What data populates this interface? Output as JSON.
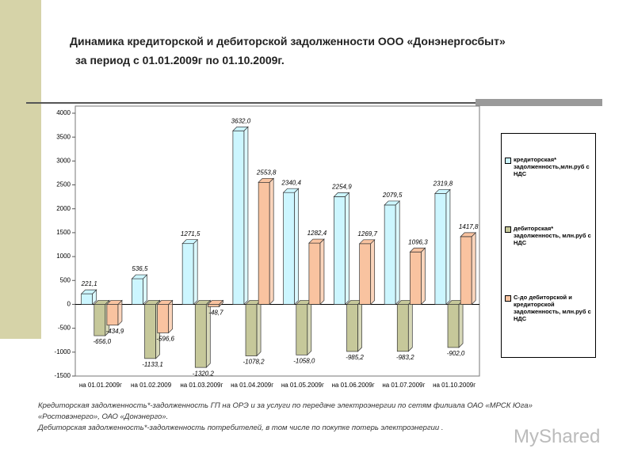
{
  "chart_data": {
    "type": "bar",
    "title": "Динамика кредиторской и дебиторской задолженности ООО «Донэнергосбыт»",
    "subtitle": "за период с 01.01.2009г по 01.10.2009г.",
    "categories": [
      "на 01.01.2009г",
      "на 01.02.2009",
      "на 01.03.2009г",
      "на 01.04.2009г",
      "на 01.05.2009г",
      "на 01.06.2009г",
      "на 01.07.2009г",
      "на 01.10.2009г"
    ],
    "series": [
      {
        "name": "кредиторская* задолженность,млн.руб с НДС",
        "color": "#ccf6ff",
        "values": [
          221.1,
          536.5,
          1271.5,
          3632.0,
          2340.4,
          2254.9,
          2079.5,
          2319.8
        ],
        "value_labels": [
          "221,1",
          "536,5",
          "1271,5",
          "3632,0",
          "2340,4",
          "2254,9",
          "2079,5",
          "2319,8"
        ]
      },
      {
        "name": "дебиторская* задолженность, млн.руб с НДС",
        "color": "#c6c89a",
        "values": [
          -656.0,
          -1133.1,
          -1320.2,
          -1078.2,
          -1058.0,
          -985.2,
          -983.2,
          -902.0
        ],
        "value_labels": [
          "-656,0",
          "-1133,1",
          "-1320,2",
          "-1078,2",
          "-1058,0",
          "-985,2",
          "-983,2",
          "-902,0"
        ]
      },
      {
        "name": "С-до дебиторской и кредиторской задолженность, млн.руб с НДС",
        "color": "#f9c3a0",
        "values": [
          -434.9,
          -596.6,
          -48.7,
          2553.8,
          1282.4,
          1269.7,
          1096.3,
          1417.8
        ],
        "value_labels": [
          "-434,9",
          "-596,6",
          "-48,7",
          "2553,8",
          "1282,4",
          "1269,7",
          "1096,3",
          "1417,8"
        ]
      }
    ],
    "ylim": [
      -1500,
      4000
    ],
    "yticks": [
      -1500,
      -1000,
      -500,
      0,
      500,
      1000,
      1500,
      2000,
      2500,
      3000,
      3500,
      4000
    ],
    "grid": false,
    "legend": "right",
    "notes": [
      "Кредиторская задолженность*-задолженность  ГП на ОРЭ и за услуги по передаче электроэнергии по сетям филиала ОАО «МРСК Юга» «Ростовэнерго», ОАО «Донэнерго».",
      "Дебиторская задолженность*-задолженность  потребителей, в том числе по покупке потерь электроэнергии ."
    ],
    "watermark": "MyShared"
  }
}
